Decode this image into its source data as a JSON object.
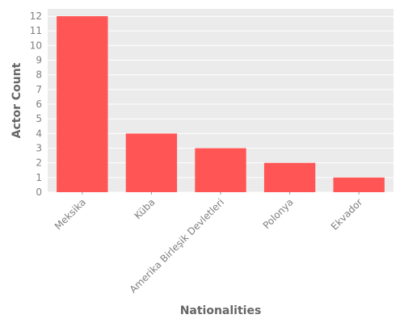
{
  "chart_data": {
    "type": "bar",
    "categories": [
      "Meksika",
      "Küba",
      "Amerika Birleşik Devletleri",
      "Polonya",
      "Ekvador"
    ],
    "values": [
      12,
      4,
      3,
      2,
      1
    ],
    "title": "",
    "xlabel": "Nationalities",
    "ylabel": "Actor Count",
    "ylim": [
      0,
      12.5
    ],
    "yticks": [
      0,
      1,
      2,
      3,
      4,
      5,
      6,
      7,
      8,
      9,
      10,
      11,
      12
    ],
    "grid": true,
    "colors": {
      "bar": "#ff5555",
      "panel": "#ebebeb",
      "grid": "#ffffff"
    }
  }
}
